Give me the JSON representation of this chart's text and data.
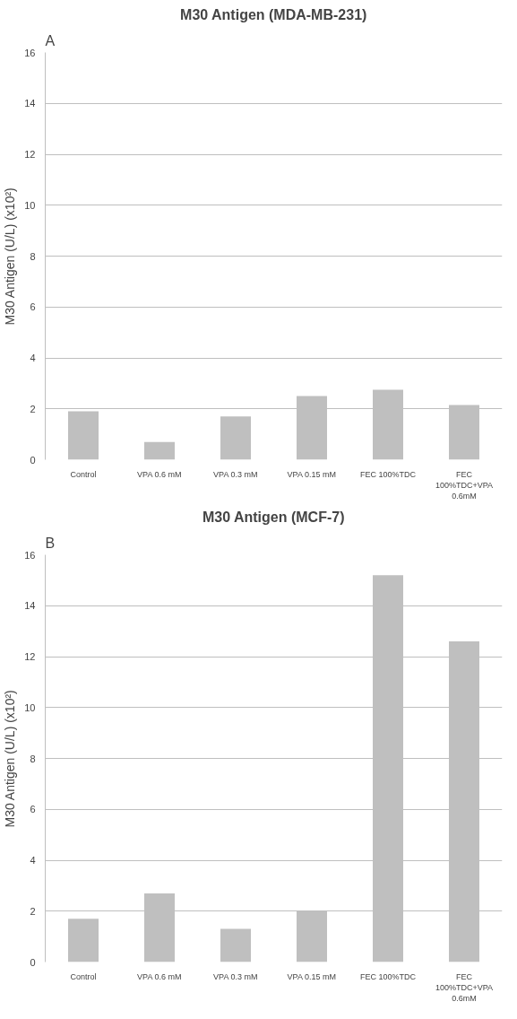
{
  "chart_data": [
    {
      "type": "bar",
      "title": "M30 Antigen (MDA-MB-231)",
      "ylabel": "M30 Antigen (U/L) (x10²)",
      "annotations": [
        "A"
      ],
      "categories": [
        "Control",
        "VPA 0.6 mM",
        "VPA 0.3 mM",
        "VPA 0.15 mM",
        "FEC 100%TDC",
        "FEC 100%TDC+VPA 0.6mM"
      ],
      "values": [
        1.9,
        0.7,
        1.7,
        2.5,
        2.75,
        2.15
      ],
      "color": "#bfbfbf",
      "ylim": [
        0,
        16
      ],
      "yticks": [
        0,
        2,
        4,
        6,
        8,
        10,
        12,
        14,
        16
      ],
      "grid": "y"
    },
    {
      "type": "bar",
      "title": "M30 Antigen (MCF-7)",
      "ylabel": "M30 Antigen (U/L) (x10²)",
      "annotations": [
        "B"
      ],
      "categories": [
        "Control",
        "VPA 0.6 mM",
        "VPA 0.3 mM",
        "VPA 0.15 mM",
        "FEC 100%TDC",
        "FEC 100%TDC+VPA 0.6mM"
      ],
      "values": [
        1.7,
        2.7,
        1.3,
        2.0,
        15.2,
        12.6
      ],
      "color": "#bfbfbf",
      "ylim": [
        0,
        16
      ],
      "yticks": [
        0,
        2,
        4,
        6,
        8,
        10,
        12,
        14,
        16
      ],
      "grid": "y"
    }
  ]
}
